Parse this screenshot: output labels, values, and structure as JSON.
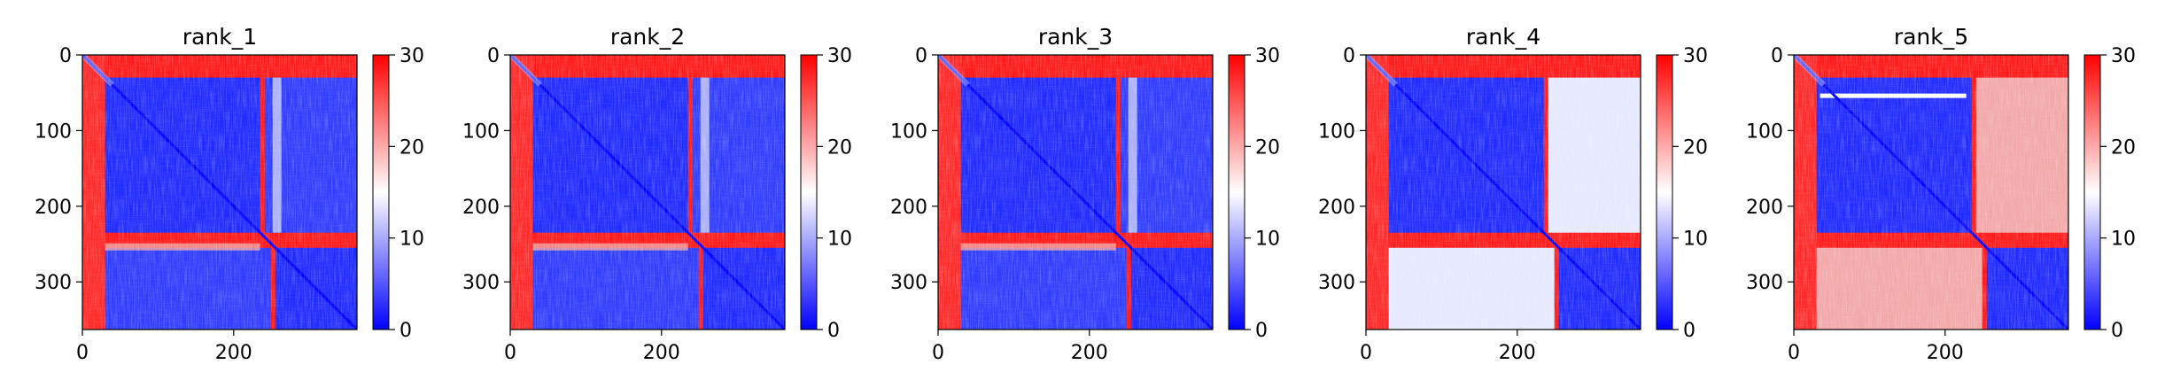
{
  "chart_data": [
    {
      "type": "heatmap",
      "title": "rank_1",
      "x_ticks": [
        0,
        200
      ],
      "y_ticks": [
        0,
        100,
        200,
        300
      ],
      "xlim": [
        0,
        363
      ],
      "ylim": [
        363,
        0
      ],
      "colorbar": {
        "ticks": [
          0,
          10,
          20,
          30
        ],
        "range": [
          0,
          30
        ],
        "colormap": "bwr"
      },
      "blocks": {
        "domain_a": [
          30,
          235
        ],
        "domain_b": [
          255,
          363
        ],
        "n_terminal_tail": [
          0,
          30
        ],
        "linker": [
          235,
          255
        ]
      }
    },
    {
      "type": "heatmap",
      "title": "rank_2",
      "x_ticks": [
        0,
        200
      ],
      "y_ticks": [
        0,
        100,
        200,
        300
      ],
      "xlim": [
        0,
        363
      ],
      "ylim": [
        363,
        0
      ],
      "colorbar": {
        "ticks": [
          0,
          10,
          20,
          30
        ],
        "range": [
          0,
          30
        ],
        "colormap": "bwr"
      },
      "blocks": {
        "domain_a": [
          30,
          235
        ],
        "domain_b": [
          255,
          363
        ],
        "n_terminal_tail": [
          0,
          30
        ],
        "linker": [
          235,
          255
        ]
      }
    },
    {
      "type": "heatmap",
      "title": "rank_3",
      "x_ticks": [
        0,
        200
      ],
      "y_ticks": [
        0,
        100,
        200,
        300
      ],
      "xlim": [
        0,
        363
      ],
      "ylim": [
        363,
        0
      ],
      "colorbar": {
        "ticks": [
          0,
          10,
          20,
          30
        ],
        "range": [
          0,
          30
        ],
        "colormap": "bwr"
      },
      "blocks": {
        "domain_a": [
          30,
          235
        ],
        "domain_b": [
          255,
          363
        ],
        "n_terminal_tail": [
          0,
          30
        ],
        "linker": [
          235,
          255
        ]
      }
    },
    {
      "type": "heatmap",
      "title": "rank_4",
      "x_ticks": [
        0,
        200
      ],
      "y_ticks": [
        0,
        100,
        200,
        300
      ],
      "xlim": [
        0,
        363
      ],
      "ylim": [
        363,
        0
      ],
      "colorbar": {
        "ticks": [
          0,
          10,
          20,
          30
        ],
        "range": [
          0,
          30
        ],
        "colormap": "bwr"
      },
      "blocks": {
        "domain_a": [
          30,
          235
        ],
        "domain_b": [
          255,
          363
        ],
        "n_terminal_tail": [
          0,
          30
        ],
        "linker": [
          235,
          255
        ]
      }
    },
    {
      "type": "heatmap",
      "title": "rank_5",
      "x_ticks": [
        0,
        200
      ],
      "y_ticks": [
        0,
        100,
        200,
        300
      ],
      "xlim": [
        0,
        363
      ],
      "ylim": [
        363,
        0
      ],
      "colorbar": {
        "ticks": [
          0,
          10,
          20,
          30
        ],
        "range": [
          0,
          30
        ],
        "colormap": "bwr"
      },
      "blocks": {
        "domain_a": [
          30,
          235
        ],
        "domain_b": [
          255,
          363
        ],
        "n_terminal_tail": [
          0,
          30
        ],
        "linker": [
          235,
          255
        ]
      }
    }
  ],
  "colors": {
    "low": "#0000ff",
    "mid": "#ffffff",
    "high": "#ff0000"
  }
}
